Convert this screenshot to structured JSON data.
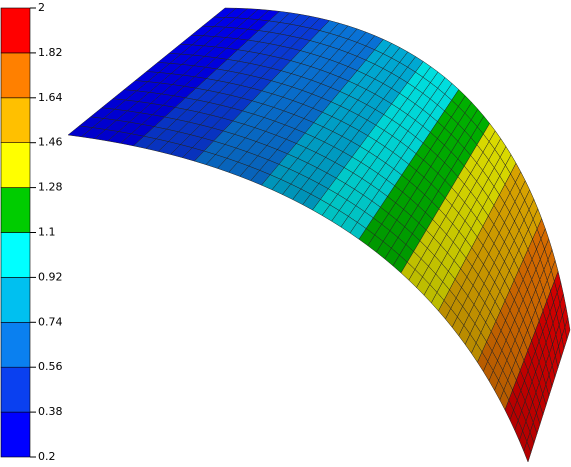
{
  "chart_data": {
    "type": "surface",
    "zlim": [
      0.2,
      2
    ],
    "zticks": [
      0.2,
      0.38,
      0.56,
      0.74,
      0.92,
      1.1,
      1.28,
      1.46,
      1.64,
      1.82,
      2
    ],
    "colors": [
      "#0000ff",
      "#0a40f0",
      "#0a80f0",
      "#00c0f0",
      "#00ffff",
      "#00cc00",
      "#ffff00",
      "#ffc000",
      "#ff8000",
      "#ff0000"
    ]
  }
}
